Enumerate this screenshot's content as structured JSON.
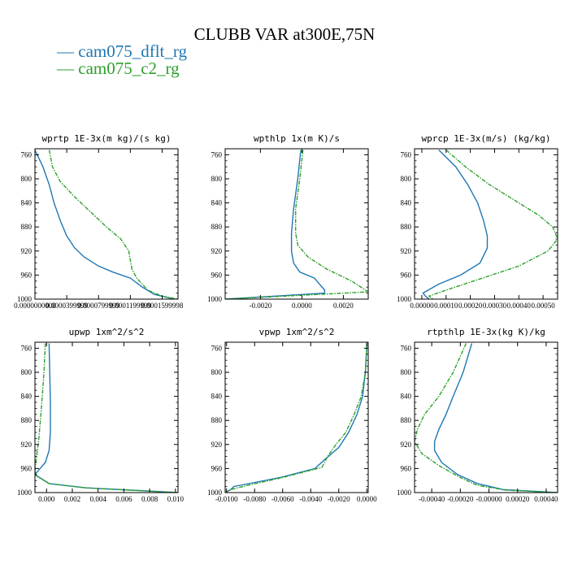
{
  "figure": {
    "title": "CLUBB VAR at300E,75N",
    "legend": [
      {
        "label": "cam075_dflt_rg",
        "color": "#1f77b4"
      },
      {
        "label": "cam075_c2_rg",
        "color": "#2ca02c"
      }
    ]
  },
  "chart_data": [
    {
      "type": "line",
      "title": "wprtp  1E-3x(m kg)/(s kg)",
      "xlim": [
        0.0,
        0.00018
      ],
      "ylim": [
        1000,
        750
      ],
      "y_ticks": [
        760,
        800,
        840,
        880,
        920,
        960,
        1000
      ],
      "x_ticks": [
        0.0,
        4e-05,
        8e-05,
        0.00012,
        0.00016
      ],
      "x_tick_labels": [
        "0.0000000000",
        "0.0000399999",
        "0.0000799999",
        "0.0001199999",
        "0.0001599998"
      ],
      "series": [
        {
          "name": "cam075_dflt_rg",
          "color": "#1f77b4",
          "x": [
            0.0,
            1e-05,
            1.8e-05,
            2.4e-05,
            3.2e-05,
            4e-05,
            5e-05,
            6.2e-05,
            8e-05,
            9.8e-05,
            0.00012,
            0.000135,
            0.00015,
            0.000175
          ],
          "y": [
            752,
            780,
            810,
            840,
            870,
            895,
            915,
            930,
            945,
            955,
            965,
            980,
            992,
            1000
          ]
        },
        {
          "name": "cam075_c2_rg",
          "color": "#2ca02c",
          "x": [
            1.8e-05,
            2.2e-05,
            3.2e-05,
            5e-05,
            7e-05,
            9e-05,
            0.000108,
            0.000118,
            0.00012,
            0.000122,
            0.000128,
            0.000142,
            0.00016,
            0.00018
          ],
          "y": [
            752,
            780,
            805,
            830,
            855,
            880,
            900,
            920,
            935,
            950,
            965,
            985,
            995,
            1000
          ]
        }
      ]
    },
    {
      "type": "line",
      "title": "wpthlp  1x(m K)/s",
      "xlim": [
        -0.0037,
        0.0032
      ],
      "ylim": [
        1000,
        750
      ],
      "y_ticks": [
        760,
        800,
        840,
        880,
        920,
        960,
        1000
      ],
      "x_ticks": [
        -0.002,
        0.0,
        0.002
      ],
      "x_tick_labels": [
        "-0.0020",
        "0.0000",
        "0.0020"
      ],
      "series": [
        {
          "name": "cam075_dflt_rg",
          "color": "#1f77b4",
          "x": [
            -5e-05,
            -0.0002,
            -0.0004,
            -0.0005,
            -0.0005,
            -0.0004,
            -0.0001,
            0.0006,
            0.0011,
            0.0011,
            -0.0037
          ],
          "y": [
            752,
            800,
            850,
            890,
            920,
            940,
            955,
            965,
            985,
            990,
            1000
          ]
        },
        {
          "name": "cam075_c2_rg",
          "color": "#2ca02c",
          "x": [
            5e-05,
            -0.0001,
            -0.0003,
            -0.0003,
            -0.0002,
            0.0003,
            0.0012,
            0.0024,
            0.0032,
            -0.0037
          ],
          "y": [
            752,
            800,
            850,
            890,
            910,
            930,
            950,
            970,
            988,
            1000
          ]
        }
      ]
    },
    {
      "type": "line",
      "title": "wprcp  1E-3x(m/s) (kg/kg)",
      "xlim": [
        -3e-05,
        0.00056
      ],
      "ylim": [
        1000,
        750
      ],
      "y_ticks": [
        760,
        800,
        840,
        880,
        920,
        960,
        1000
      ],
      "x_ticks": [
        0.0,
        0.0001,
        0.0002,
        0.0003,
        0.0004,
        0.0005
      ],
      "x_tick_labels": [
        "0.00000",
        "0.00010",
        "0.00020",
        "0.00030",
        "0.00040",
        "0.00050"
      ],
      "series": [
        {
          "name": "cam075_dflt_rg",
          "color": "#1f77b4",
          "x": [
            7e-05,
            0.00014,
            0.00019,
            0.00023,
            0.000255,
            0.00027,
            0.00027,
            0.00024,
            0.00016,
            7e-05,
            5e-06,
            1.5e-05,
            3e-05
          ],
          "y": [
            752,
            780,
            810,
            840,
            870,
            895,
            915,
            940,
            960,
            975,
            990,
            995,
            1000
          ]
        },
        {
          "name": "cam075_c2_rg",
          "color": "#2ca02c",
          "x": [
            0.0001,
            0.00018,
            0.00028,
            0.0004,
            0.00048,
            0.00054,
            0.00056,
            0.00052,
            0.0004,
            0.00025,
            0.0001,
            3e-05,
            4.5e-05
          ],
          "y": [
            752,
            780,
            810,
            840,
            860,
            880,
            900,
            920,
            945,
            965,
            985,
            995,
            1000
          ]
        }
      ]
    },
    {
      "type": "line",
      "title": "upwp  1xm^2/s^2",
      "xlim": [
        -0.0009,
        0.0102
      ],
      "ylim": [
        1000,
        750
      ],
      "y_ticks": [
        760,
        800,
        840,
        880,
        920,
        960,
        1000
      ],
      "x_ticks": [
        0.0,
        0.002,
        0.004,
        0.006,
        0.008,
        0.01
      ],
      "x_tick_labels": [
        "0.000",
        "0.002",
        "0.004",
        "0.006",
        "0.008",
        "0.010"
      ],
      "series": [
        {
          "name": "cam075_dflt_rg",
          "color": "#1f77b4",
          "x": [
            0.0002,
            0.00025,
            0.0003,
            0.0003,
            0.0002,
            -0.0001,
            -0.0005,
            -0.0009,
            0.0002,
            0.003,
            0.0102
          ],
          "y": [
            752,
            800,
            850,
            900,
            930,
            950,
            960,
            970,
            985,
            992,
            1000
          ]
        },
        {
          "name": "cam075_c2_rg",
          "color": "#2ca02c",
          "x": [
            -0.0001,
            -0.0002,
            -0.0004,
            -0.0006,
            -0.0008,
            -0.0009,
            -0.0008,
            0.0002,
            0.003,
            0.0102
          ],
          "y": [
            752,
            800,
            860,
            910,
            945,
            960,
            972,
            985,
            992,
            1000
          ]
        }
      ]
    },
    {
      "type": "line",
      "title": "vpwp  1xm^2/s^2",
      "xlim": [
        -0.0101,
        0.0001
      ],
      "ylim": [
        1000,
        750
      ],
      "y_ticks": [
        760,
        800,
        840,
        880,
        920,
        960,
        1000
      ],
      "x_ticks": [
        -0.01,
        -0.008,
        -0.006,
        -0.004,
        -0.002,
        0.0
      ],
      "x_tick_labels": [
        "-0.0100",
        "-0.0080",
        "-0.0060",
        "-0.0040",
        "-0.0020",
        "0.0000"
      ],
      "series": [
        {
          "name": "cam075_dflt_rg",
          "color": "#1f77b4",
          "x": [
            0.0,
            -0.0001,
            -0.0003,
            -0.0007,
            -0.0013,
            -0.002,
            -0.003,
            -0.0037,
            -0.0062,
            -0.0095,
            -0.0097,
            -0.0101
          ],
          "y": [
            752,
            800,
            840,
            870,
            900,
            925,
            945,
            960,
            975,
            990,
            995,
            1000
          ]
        },
        {
          "name": "cam075_c2_rg",
          "color": "#2ca02c",
          "x": [
            0.0,
            -0.0001,
            -0.0004,
            -0.0009,
            -0.0015,
            -0.0022,
            -0.0028,
            -0.0032,
            -0.006,
            -0.0085,
            -0.0097,
            -0.0101
          ],
          "y": [
            752,
            800,
            840,
            870,
            900,
            920,
            940,
            958,
            975,
            988,
            995,
            1000
          ]
        }
      ]
    },
    {
      "type": "line",
      "title": "rtpthlp  1E-3x(kg K)/kg",
      "xlim": [
        -0.00052,
        0.00048
      ],
      "ylim": [
        1000,
        750
      ],
      "y_ticks": [
        760,
        800,
        840,
        880,
        920,
        960,
        1000
      ],
      "x_ticks": [
        -0.0004,
        -0.0002,
        0.0,
        0.0002,
        0.0004
      ],
      "x_tick_labels": [
        "-0.00040",
        "-0.00020",
        "-0.00000",
        "0.00020",
        "0.00040"
      ],
      "series": [
        {
          "name": "cam075_dflt_rg",
          "color": "#1f77b4",
          "x": [
            -0.00012,
            -0.00018,
            -0.00025,
            -0.0003,
            -0.00035,
            -0.00038,
            -0.00038,
            -0.00033,
            -0.00022,
            -8e-05,
            0.0001,
            0.00048
          ],
          "y": [
            752,
            800,
            840,
            870,
            895,
            915,
            930,
            950,
            970,
            985,
            995,
            1000
          ]
        },
        {
          "name": "cam075_c2_rg",
          "color": "#2ca02c",
          "x": [
            -0.00016,
            -0.00025,
            -0.00035,
            -0.00045,
            -0.0005,
            -0.00052,
            -0.00047,
            -0.00035,
            -0.0002,
            -8e-05,
            0.00012,
            0.00048
          ],
          "y": [
            752,
            800,
            840,
            870,
            895,
            915,
            935,
            955,
            975,
            988,
            996,
            1000
          ]
        }
      ]
    }
  ]
}
